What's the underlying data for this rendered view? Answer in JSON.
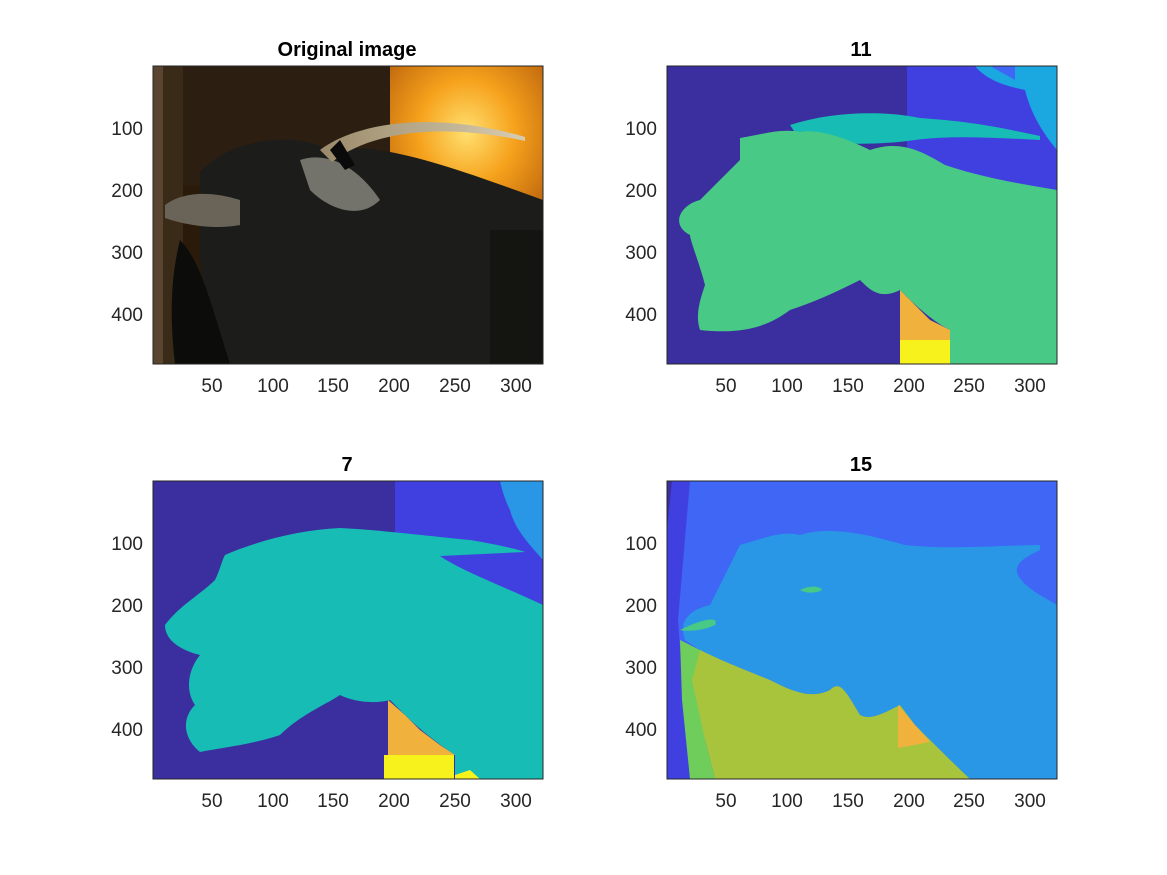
{
  "figure": {
    "background": "#ffffff",
    "subplots": [
      {
        "id": "original",
        "title": "Original image",
        "kind": "photo",
        "content": "goat-photo",
        "xticks": [
          "50",
          "100",
          "150",
          "200",
          "250",
          "300"
        ],
        "yticks": [
          "100",
          "200",
          "300",
          "400"
        ],
        "xlim": [
          0,
          320
        ],
        "ylim": [
          0,
          480
        ]
      },
      {
        "id": "seg11",
        "title": "11",
        "kind": "segmentation",
        "xticks": [
          "50",
          "100",
          "150",
          "200",
          "250",
          "300"
        ],
        "yticks": [
          "100",
          "200",
          "300",
          "400"
        ],
        "xlim": [
          0,
          320
        ],
        "ylim": [
          0,
          480
        ]
      },
      {
        "id": "seg7",
        "title": "7",
        "kind": "segmentation",
        "xticks": [
          "50",
          "100",
          "150",
          "200",
          "250",
          "300"
        ],
        "yticks": [
          "100",
          "200",
          "300",
          "400"
        ],
        "xlim": [
          0,
          320
        ],
        "ylim": [
          0,
          480
        ]
      },
      {
        "id": "seg15",
        "title": "15",
        "kind": "segmentation",
        "xticks": [
          "50",
          "100",
          "150",
          "200",
          "250",
          "300"
        ],
        "yticks": [
          "100",
          "200",
          "300",
          "400"
        ],
        "xlim": [
          0,
          320
        ],
        "ylim": [
          0,
          480
        ]
      }
    ],
    "palette": {
      "deep_indigo": "#3b2fa0",
      "royal_blue": "#4040e0",
      "cornflower": "#3f66f5",
      "sky": "#2996e6",
      "cyan": "#1ba8e0",
      "teal": "#17bdb4",
      "green": "#48c985",
      "spring_green": "#6fcd5c",
      "olive": "#a8c43c",
      "orange": "#f0b23c",
      "yellow": "#f7f21c"
    }
  }
}
